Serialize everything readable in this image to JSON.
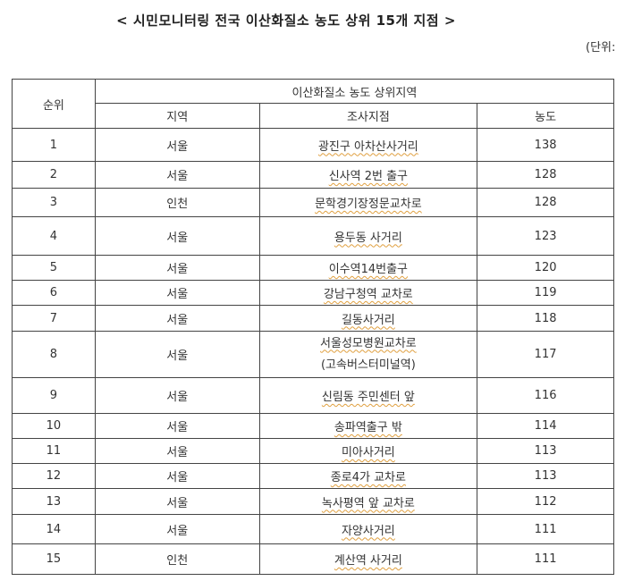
{
  "title": "< 시민모니터링 전국 이산화질소 농도 상위 15개 지점 >",
  "unit": "(단위:",
  "header": {
    "rank": "순위",
    "group": "이산화질소 농도 상위지역",
    "region": "지역",
    "site": "조사지점",
    "conc": "농도"
  },
  "rows": [
    {
      "rank": "1",
      "region": "서울",
      "site": "광진구 아차산사거리",
      "conc": "138"
    },
    {
      "rank": "2",
      "region": "서울",
      "site": "신사역 2번 출구",
      "conc": "128"
    },
    {
      "rank": "3",
      "region": "인천",
      "site": "문학경기장정문교차로",
      "conc": "128"
    },
    {
      "rank": "4",
      "region": "서울",
      "site": "용두동 사거리",
      "conc": "123"
    },
    {
      "rank": "5",
      "region": "서울",
      "site": "이수역14번출구",
      "conc": "120"
    },
    {
      "rank": "6",
      "region": "서울",
      "site": "강남구청역 교차로",
      "conc": "119"
    },
    {
      "rank": "7",
      "region": "서울",
      "site": "길동사거리",
      "conc": "118"
    },
    {
      "rank": "8",
      "region": "서울",
      "site": "서울성모병원교차로",
      "site2": "(고속버스터미널역)",
      "conc": "117"
    },
    {
      "rank": "9",
      "region": "서울",
      "site": "신림동 주민센터 앞",
      "conc": "116"
    },
    {
      "rank": "10",
      "region": "서울",
      "site": "송파역출구 밖",
      "conc": "114"
    },
    {
      "rank": "11",
      "region": "서울",
      "site": "미아사거리",
      "conc": "113"
    },
    {
      "rank": "12",
      "region": "서울",
      "site": "종로4가 교차로",
      "conc": "113"
    },
    {
      "rank": "13",
      "region": "서울",
      "site": "녹사평역 앞 교차로",
      "conc": "112"
    },
    {
      "rank": "14",
      "region": "서울",
      "site": "자양사거리",
      "conc": "111"
    },
    {
      "rank": "15",
      "region": "인천",
      "site": "계산역 사거리",
      "conc": "111"
    }
  ]
}
